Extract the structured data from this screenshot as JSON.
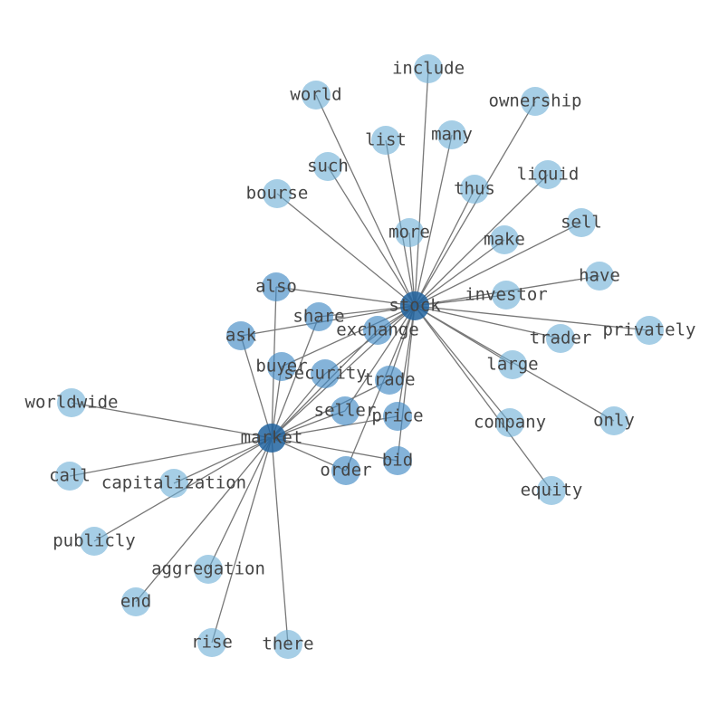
{
  "nodes": [
    {
      "label": "stock"
    },
    {
      "label": "market"
    },
    {
      "label": "include"
    },
    {
      "label": "world"
    },
    {
      "label": "ownership"
    },
    {
      "label": "list"
    },
    {
      "label": "many"
    },
    {
      "label": "such"
    },
    {
      "label": "thus"
    },
    {
      "label": "liquid"
    },
    {
      "label": "bourse"
    },
    {
      "label": "more"
    },
    {
      "label": "make"
    },
    {
      "label": "sell"
    },
    {
      "label": "have"
    },
    {
      "label": "also"
    },
    {
      "label": "investor"
    },
    {
      "label": "share"
    },
    {
      "label": "ask"
    },
    {
      "label": "exchange"
    },
    {
      "label": "trader"
    },
    {
      "label": "privately"
    },
    {
      "label": "buyer"
    },
    {
      "label": "security"
    },
    {
      "label": "trade"
    },
    {
      "label": "large"
    },
    {
      "label": "worldwide"
    },
    {
      "label": "seller"
    },
    {
      "label": "price"
    },
    {
      "label": "company"
    },
    {
      "label": "only"
    },
    {
      "label": "bid"
    },
    {
      "label": "order"
    },
    {
      "label": "call"
    },
    {
      "label": "capitalization"
    },
    {
      "label": "equity"
    },
    {
      "label": "publicly"
    },
    {
      "label": "aggregation"
    },
    {
      "label": "end"
    },
    {
      "label": "rise"
    },
    {
      "label": "there"
    }
  ]
}
